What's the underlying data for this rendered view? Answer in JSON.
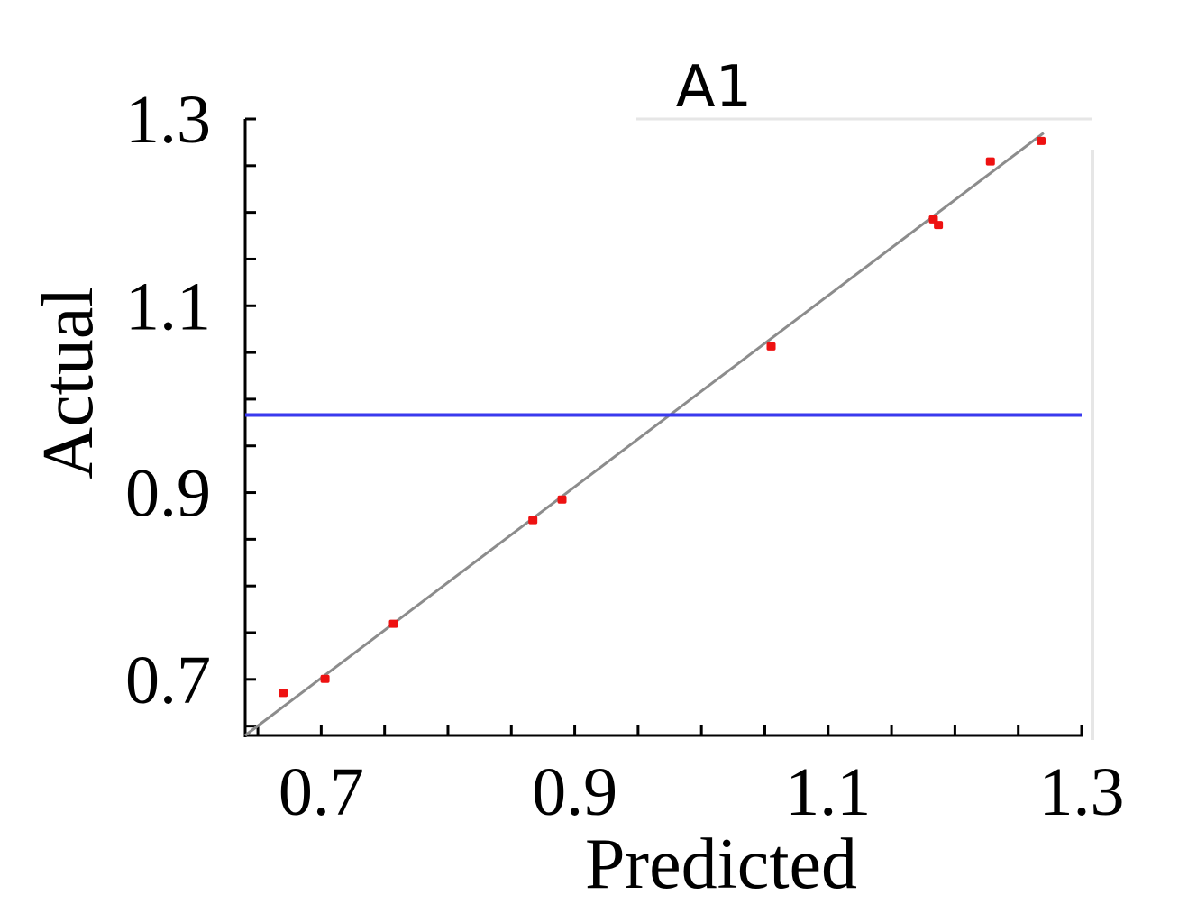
{
  "chart_data": {
    "type": "scatter",
    "title": "A1",
    "xlabel": "Predicted",
    "ylabel": "Actual",
    "xlim": [
      0.64,
      1.3
    ],
    "ylim": [
      0.64,
      1.3
    ],
    "xticks": [
      "0.7",
      "0.9",
      "1.1",
      "1.3"
    ],
    "yticks": [
      "0.7",
      "0.9",
      "1.1",
      "1.3"
    ],
    "grid": false,
    "points": [
      {
        "x": 0.67,
        "y": 0.686
      },
      {
        "x": 0.703,
        "y": 0.701
      },
      {
        "x": 0.757,
        "y": 0.76
      },
      {
        "x": 0.867,
        "y": 0.871
      },
      {
        "x": 0.89,
        "y": 0.893
      },
      {
        "x": 1.055,
        "y": 1.057
      },
      {
        "x": 1.183,
        "y": 1.193
      },
      {
        "x": 1.187,
        "y": 1.187
      },
      {
        "x": 1.228,
        "y": 1.255
      },
      {
        "x": 1.268,
        "y": 1.277
      }
    ],
    "reference_line": {
      "type": "diagonal",
      "color": "#8c8c8c"
    },
    "mean_line": {
      "y": 0.983,
      "color": "#3a3aee"
    },
    "point_color": "#ee1111"
  }
}
